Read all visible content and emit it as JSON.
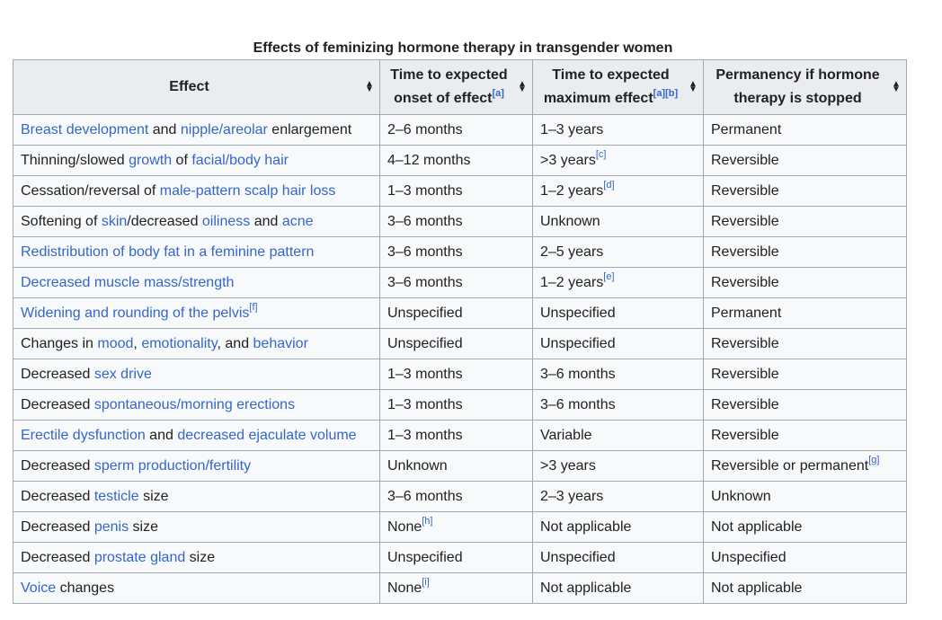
{
  "table": {
    "caption": "Effects of feminizing hormone therapy in transgender women",
    "headers": [
      {
        "parts": [
          {
            "t": "Effect"
          }
        ]
      },
      {
        "parts": [
          {
            "t": "Time to expected onset of effect"
          },
          {
            "t": "[a]",
            "sup": true
          }
        ]
      },
      {
        "parts": [
          {
            "t": "Time to expected maximum effect"
          },
          {
            "t": "[a][b]",
            "sup": true
          }
        ]
      },
      {
        "parts": [
          {
            "t": "Permanency if hormone therapy is stopped"
          }
        ]
      }
    ],
    "rows": [
      [
        [
          {
            "t": "Breast development",
            "link": true
          },
          {
            "t": " and "
          },
          {
            "t": "nipple/areolar",
            "link": true
          },
          {
            "t": " enlargement"
          }
        ],
        [
          {
            "t": "2–6 months"
          }
        ],
        [
          {
            "t": "1–3 years"
          }
        ],
        [
          {
            "t": "Permanent"
          }
        ]
      ],
      [
        [
          {
            "t": "Thinning/slowed "
          },
          {
            "t": "growth",
            "link": true
          },
          {
            "t": " of "
          },
          {
            "t": "facial/body hair",
            "link": true
          }
        ],
        [
          {
            "t": "4–12 months"
          }
        ],
        [
          {
            "t": ">3 years"
          },
          {
            "t": "[c]",
            "sup": true
          }
        ],
        [
          {
            "t": "Reversible"
          }
        ]
      ],
      [
        [
          {
            "t": "Cessation/reversal of "
          },
          {
            "t": "male-pattern scalp hair loss",
            "link": true
          }
        ],
        [
          {
            "t": "1–3 months"
          }
        ],
        [
          {
            "t": "1–2 years"
          },
          {
            "t": "[d]",
            "sup": true
          }
        ],
        [
          {
            "t": "Reversible"
          }
        ]
      ],
      [
        [
          {
            "t": "Softening of "
          },
          {
            "t": "skin",
            "link": true
          },
          {
            "t": "/decreased "
          },
          {
            "t": "oiliness",
            "link": true
          },
          {
            "t": " and "
          },
          {
            "t": "acne",
            "link": true
          }
        ],
        [
          {
            "t": "3–6 months"
          }
        ],
        [
          {
            "t": "Unknown"
          }
        ],
        [
          {
            "t": "Reversible"
          }
        ]
      ],
      [
        [
          {
            "t": "Redistribution of body fat in a feminine pattern",
            "link": true
          }
        ],
        [
          {
            "t": "3–6 months"
          }
        ],
        [
          {
            "t": "2–5 years"
          }
        ],
        [
          {
            "t": "Reversible"
          }
        ]
      ],
      [
        [
          {
            "t": "Decreased muscle mass/strength",
            "link": true
          }
        ],
        [
          {
            "t": "3–6 months"
          }
        ],
        [
          {
            "t": "1–2 years"
          },
          {
            "t": "[e]",
            "sup": true
          }
        ],
        [
          {
            "t": "Reversible"
          }
        ]
      ],
      [
        [
          {
            "t": "Widening and rounding of the pelvis",
            "link": true
          },
          {
            "t": "[f]",
            "sup": true
          }
        ],
        [
          {
            "t": "Unspecified"
          }
        ],
        [
          {
            "t": "Unspecified"
          }
        ],
        [
          {
            "t": "Permanent"
          }
        ]
      ],
      [
        [
          {
            "t": "Changes in "
          },
          {
            "t": "mood",
            "link": true
          },
          {
            "t": ", "
          },
          {
            "t": "emotionality",
            "link": true
          },
          {
            "t": ", and "
          },
          {
            "t": "behavior",
            "link": true
          }
        ],
        [
          {
            "t": "Unspecified"
          }
        ],
        [
          {
            "t": "Unspecified"
          }
        ],
        [
          {
            "t": "Reversible"
          }
        ]
      ],
      [
        [
          {
            "t": "Decreased "
          },
          {
            "t": "sex drive",
            "link": true
          }
        ],
        [
          {
            "t": "1–3 months"
          }
        ],
        [
          {
            "t": "3–6 months"
          }
        ],
        [
          {
            "t": "Reversible"
          }
        ]
      ],
      [
        [
          {
            "t": "Decreased "
          },
          {
            "t": "spontaneous/morning erections",
            "link": true
          }
        ],
        [
          {
            "t": "1–3 months"
          }
        ],
        [
          {
            "t": "3–6 months"
          }
        ],
        [
          {
            "t": "Reversible"
          }
        ]
      ],
      [
        [
          {
            "t": "Erectile dysfunction",
            "link": true
          },
          {
            "t": " and "
          },
          {
            "t": "decreased ejaculate volume",
            "link": true
          }
        ],
        [
          {
            "t": "1–3 months"
          }
        ],
        [
          {
            "t": "Variable"
          }
        ],
        [
          {
            "t": "Reversible"
          }
        ]
      ],
      [
        [
          {
            "t": "Decreased "
          },
          {
            "t": "sperm production/fertility",
            "link": true
          }
        ],
        [
          {
            "t": "Unknown"
          }
        ],
        [
          {
            "t": ">3 years"
          }
        ],
        [
          {
            "t": "Reversible or permanent"
          },
          {
            "t": "[g]",
            "sup": true
          }
        ]
      ],
      [
        [
          {
            "t": "Decreased "
          },
          {
            "t": "testicle",
            "link": true
          },
          {
            "t": " size"
          }
        ],
        [
          {
            "t": "3–6 months"
          }
        ],
        [
          {
            "t": "2–3 years"
          }
        ],
        [
          {
            "t": "Unknown"
          }
        ]
      ],
      [
        [
          {
            "t": "Decreased "
          },
          {
            "t": "penis",
            "link": true
          },
          {
            "t": " size"
          }
        ],
        [
          {
            "t": "None"
          },
          {
            "t": "[h]",
            "sup": true
          }
        ],
        [
          {
            "t": "Not applicable"
          }
        ],
        [
          {
            "t": "Not applicable"
          }
        ]
      ],
      [
        [
          {
            "t": "Decreased "
          },
          {
            "t": "prostate gland",
            "link": true
          },
          {
            "t": " size"
          }
        ],
        [
          {
            "t": "Unspecified"
          }
        ],
        [
          {
            "t": "Unspecified"
          }
        ],
        [
          {
            "t": "Unspecified"
          }
        ]
      ],
      [
        [
          {
            "t": "Voice",
            "link": true
          },
          {
            "t": " changes"
          }
        ],
        [
          {
            "t": "None"
          },
          {
            "t": "[i]",
            "sup": true
          }
        ],
        [
          {
            "t": "Not applicable"
          }
        ],
        [
          {
            "t": "Not applicable"
          }
        ]
      ]
    ]
  }
}
